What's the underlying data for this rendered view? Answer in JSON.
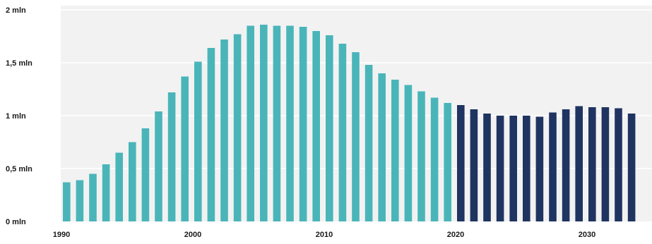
{
  "chart_data": {
    "type": "bar",
    "title": "",
    "xlabel": "",
    "ylabel": "",
    "ylim": [
      0,
      2
    ],
    "grid": true,
    "legend": "none",
    "yticks": [
      {
        "value": 0,
        "label": "0 mln"
      },
      {
        "value": 0.5,
        "label": "0,5 mln"
      },
      {
        "value": 1,
        "label": "1 mln"
      },
      {
        "value": 1.5,
        "label": "1,5 mln"
      },
      {
        "value": 2,
        "label": "2 mln"
      }
    ],
    "xticks": [
      {
        "value": 1990,
        "label": "1990"
      },
      {
        "value": 2000,
        "label": "2000"
      },
      {
        "value": 2010,
        "label": "2010"
      },
      {
        "value": 2020,
        "label": "2020"
      },
      {
        "value": 2030,
        "label": "2030"
      }
    ],
    "colors": {
      "historical": "#4ab5b9",
      "projected": "#1f3461",
      "grid": "#ffffff",
      "plot_bg": "#f2f2f2"
    },
    "series": [
      {
        "color": "#4ab5b9",
        "x": [
          1990,
          1991,
          1992,
          1993,
          1994,
          1995,
          1996,
          1997,
          1998,
          1999,
          2000,
          2001,
          2002,
          2003,
          2004,
          2005,
          2006,
          2007,
          2008,
          2009,
          2010,
          2011,
          2012,
          2013,
          2014,
          2015,
          2016,
          2017,
          2018,
          2019
        ],
        "values": [
          0.37,
          0.39,
          0.45,
          0.54,
          0.65,
          0.75,
          0.88,
          1.04,
          1.22,
          1.37,
          1.51,
          1.64,
          1.72,
          1.77,
          1.85,
          1.86,
          1.85,
          1.85,
          1.84,
          1.8,
          1.76,
          1.68,
          1.6,
          1.48,
          1.4,
          1.34,
          1.29,
          1.23,
          1.17,
          1.12
        ]
      },
      {
        "color": "#1f3461",
        "x": [
          2020,
          2021,
          2022,
          2023,
          2024,
          2025,
          2026,
          2027,
          2028,
          2029,
          2030,
          2031,
          2032,
          2033
        ],
        "values": [
          1.1,
          1.06,
          1.02,
          1.0,
          1.0,
          1.0,
          0.99,
          1.03,
          1.06,
          1.09,
          1.08,
          1.08,
          1.07,
          1.02
        ]
      }
    ]
  }
}
